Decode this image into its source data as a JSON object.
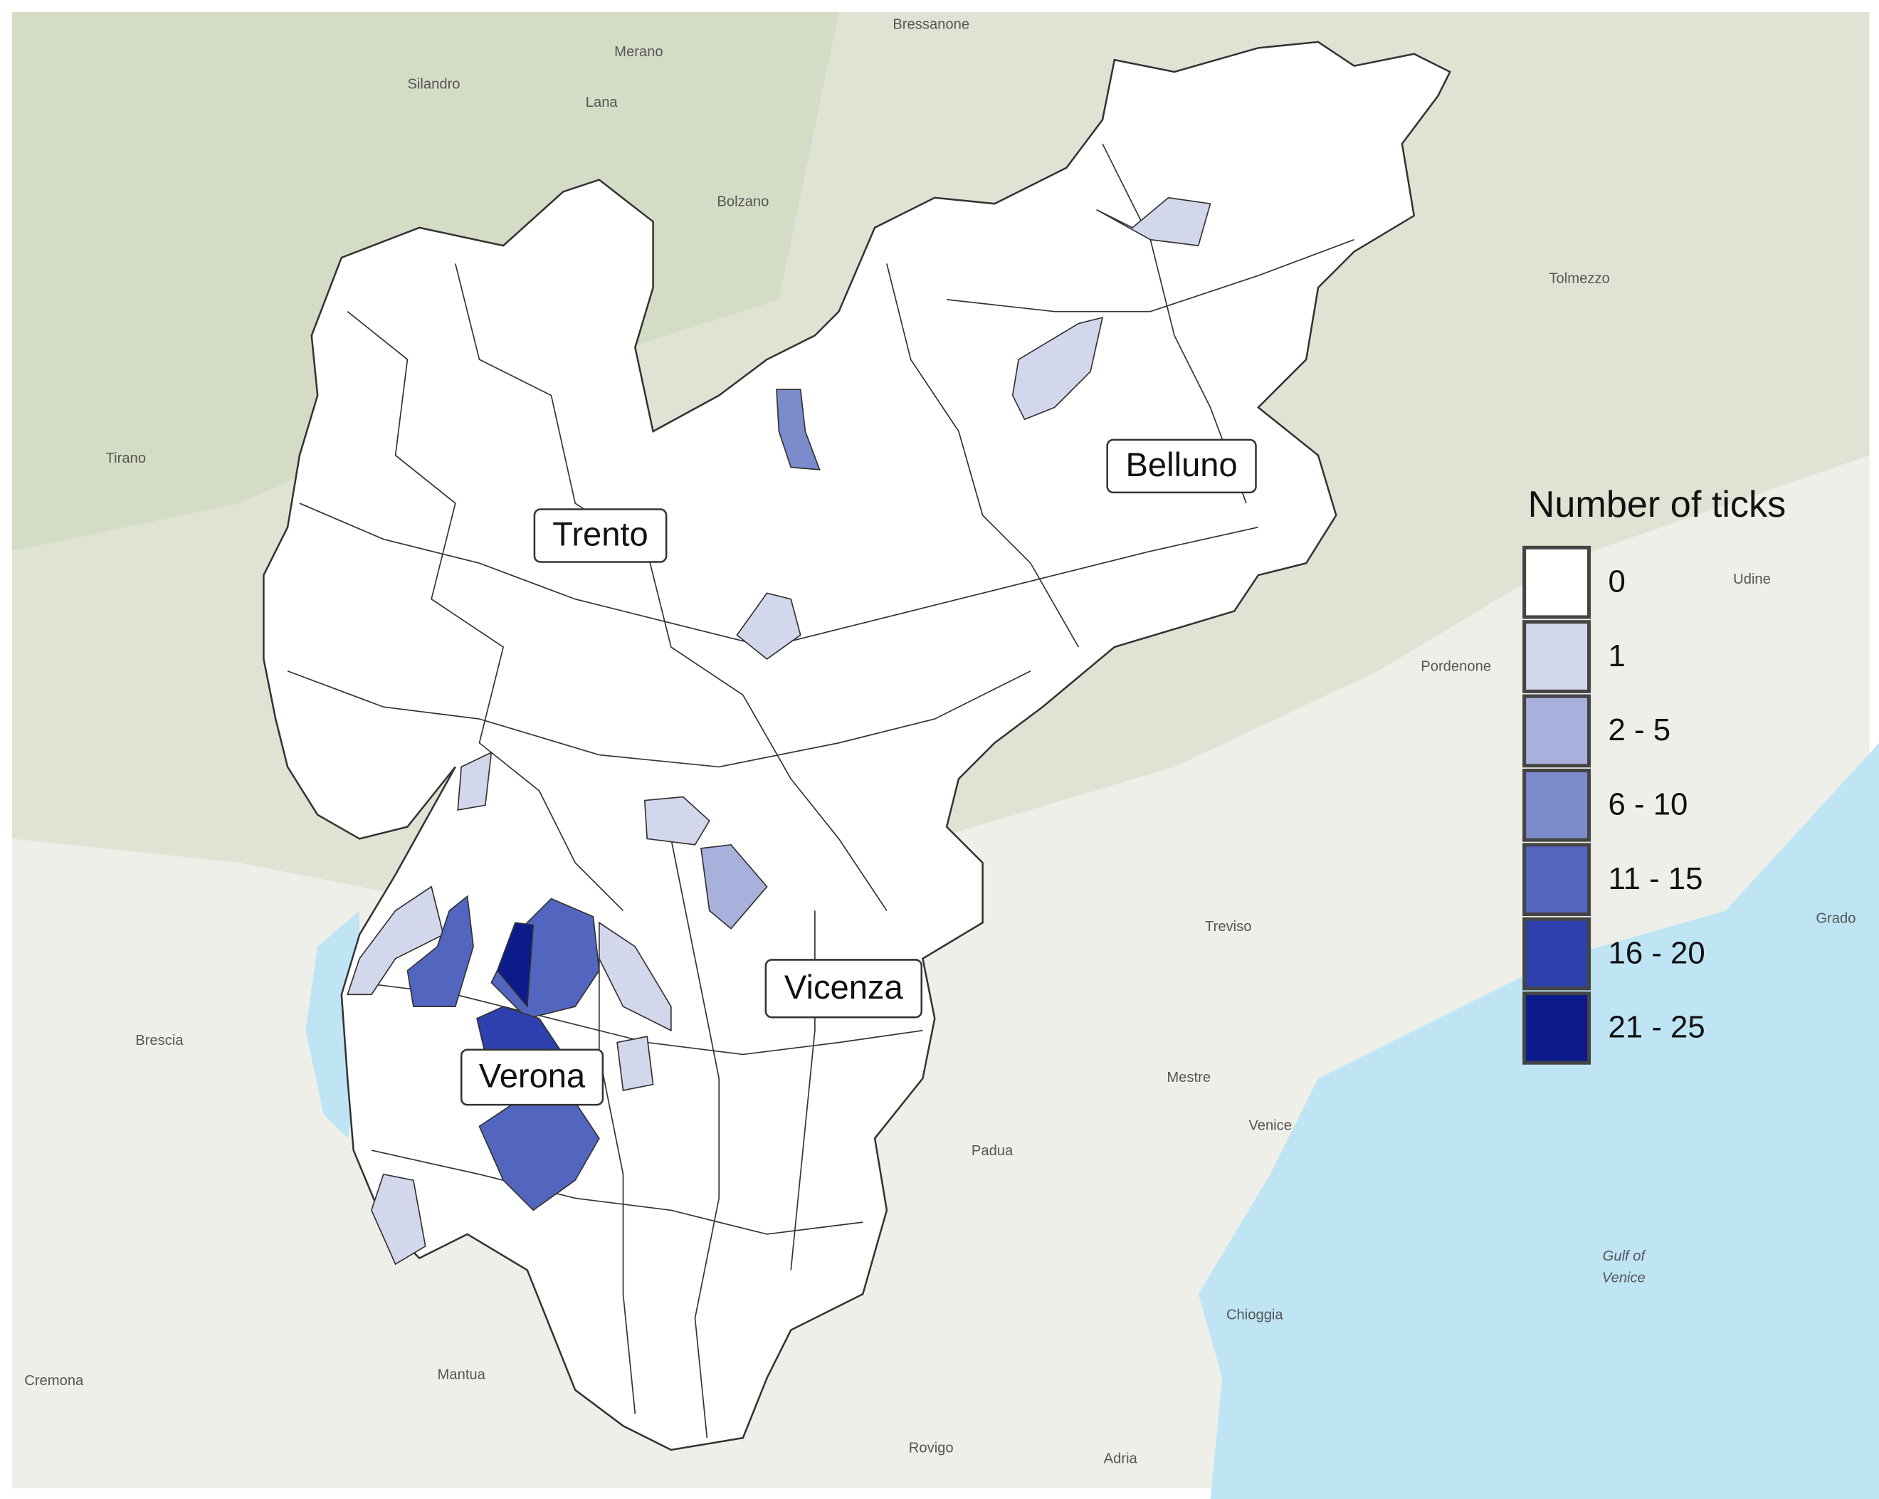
{
  "map": {
    "provinces": [
      "Trento",
      "Belluno",
      "Vicenza",
      "Verona"
    ],
    "legend": {
      "title": "Number of ticks",
      "items": [
        {
          "label": "0",
          "color": "#ffffff"
        },
        {
          "label": "1",
          "color": "#d3d7ec"
        },
        {
          "label": "2 - 5",
          "color": "#a7b1dc"
        },
        {
          "label": "6 - 10",
          "color": "#7b8bcb"
        },
        {
          "label": "11 - 15",
          "color": "#5366bf"
        },
        {
          "label": "16 - 20",
          "color": "#2d40ad"
        },
        {
          "label": "21 - 25",
          "color": "#0b1b8c"
        }
      ]
    },
    "places": [
      "Bressanone",
      "Merano",
      "Silandro",
      "Lana",
      "Bolzano",
      "Tirano",
      "Brescia",
      "Cremona",
      "Mantua",
      "Padua",
      "Treviso",
      "Mestre",
      "Venice",
      "Chioggia",
      "Rovigo",
      "Adria",
      "Pordenone",
      "Tolmezzo",
      "Udine",
      "Grado"
    ],
    "gulf": [
      "Gulf of",
      "Venice"
    ]
  }
}
